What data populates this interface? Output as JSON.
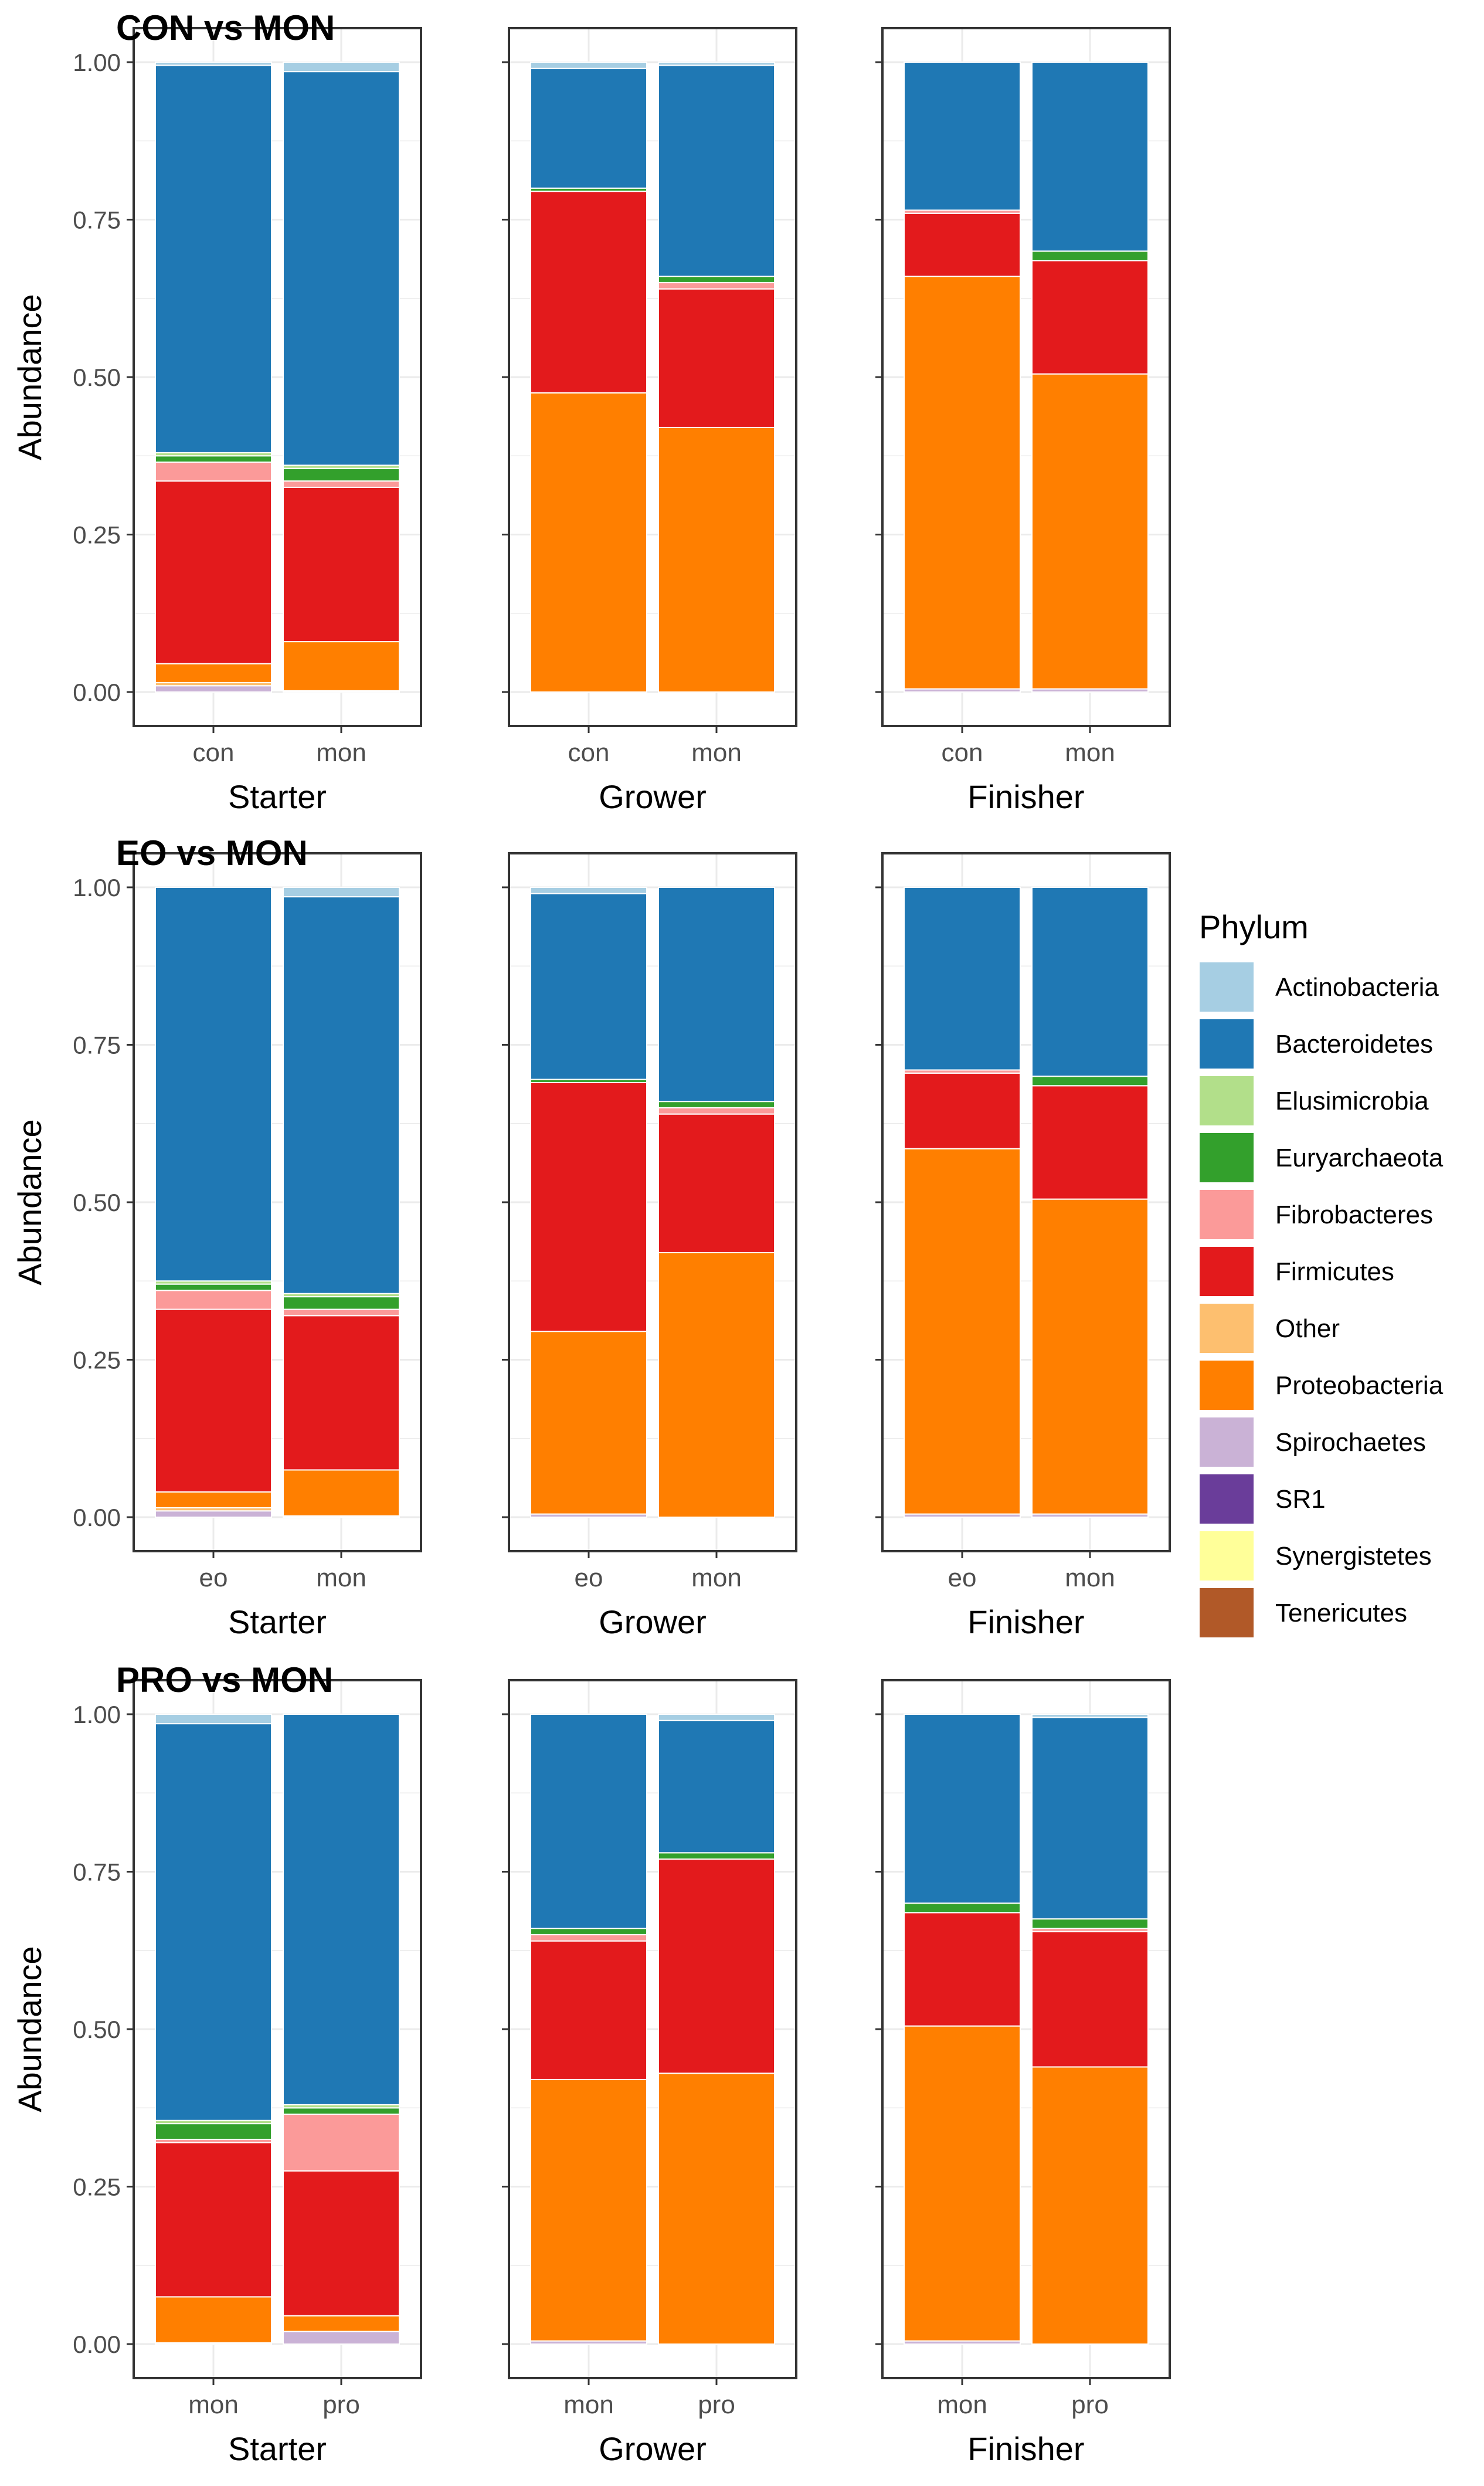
{
  "chart_data": {
    "type": "bar",
    "stacked": true,
    "ylabel": "Abundance",
    "ylim": [
      0,
      1
    ],
    "yticks": [
      "0.00",
      "0.25",
      "0.50",
      "0.75",
      "1.00"
    ],
    "grid": true,
    "legend": {
      "title": "Phylum",
      "position": "right",
      "entries": [
        {
          "name": "Actinobacteria",
          "color": "#A6CEE3"
        },
        {
          "name": "Bacteroidetes",
          "color": "#1F78B4"
        },
        {
          "name": "Elusimicrobia",
          "color": "#B2DF8A"
        },
        {
          "name": "Euryarchaeota",
          "color": "#33A02C"
        },
        {
          "name": "Fibrobacteres",
          "color": "#FB9A99"
        },
        {
          "name": "Firmicutes",
          "color": "#E31A1C"
        },
        {
          "name": "Other",
          "color": "#FDBF6F"
        },
        {
          "name": "Proteobacteria",
          "color": "#FF7F00"
        },
        {
          "name": "Spirochaetes",
          "color": "#CAB2D6"
        },
        {
          "name": "SR1",
          "color": "#6A3D9A"
        },
        {
          "name": "Synergistetes",
          "color": "#FFFF99"
        },
        {
          "name": "Tenericutes",
          "color": "#B15928"
        }
      ]
    },
    "rows": [
      {
        "title": "CON vs MON",
        "panels": [
          {
            "xlabel": "Starter",
            "bars": [
              {
                "category": "con",
                "segments": [
                  {
                    "phylum": "Spirochaetes",
                    "value": 0.01
                  },
                  {
                    "phylum": "Other",
                    "value": 0.005
                  },
                  {
                    "phylum": "Proteobacteria",
                    "value": 0.03
                  },
                  {
                    "phylum": "Firmicutes",
                    "value": 0.29
                  },
                  {
                    "phylum": "Fibrobacteres",
                    "value": 0.03
                  },
                  {
                    "phylum": "Euryarchaeota",
                    "value": 0.01
                  },
                  {
                    "phylum": "Elusimicrobia",
                    "value": 0.005
                  },
                  {
                    "phylum": "Bacteroidetes",
                    "value": 0.615
                  },
                  {
                    "phylum": "Actinobacteria",
                    "value": 0.005
                  }
                ]
              },
              {
                "category": "mon",
                "segments": [
                  {
                    "phylum": "Spirochaetes",
                    "value": 0.002
                  },
                  {
                    "phylum": "Proteobacteria",
                    "value": 0.078
                  },
                  {
                    "phylum": "Firmicutes",
                    "value": 0.245
                  },
                  {
                    "phylum": "Fibrobacteres",
                    "value": 0.01
                  },
                  {
                    "phylum": "Euryarchaeota",
                    "value": 0.02
                  },
                  {
                    "phylum": "Elusimicrobia",
                    "value": 0.005
                  },
                  {
                    "phylum": "Bacteroidetes",
                    "value": 0.625
                  },
                  {
                    "phylum": "Actinobacteria",
                    "value": 0.015
                  }
                ]
              }
            ]
          },
          {
            "xlabel": "Grower",
            "bars": [
              {
                "category": "con",
                "segments": [
                  {
                    "phylum": "Proteobacteria",
                    "value": 0.475
                  },
                  {
                    "phylum": "Firmicutes",
                    "value": 0.32
                  },
                  {
                    "phylum": "Euryarchaeota",
                    "value": 0.005
                  },
                  {
                    "phylum": "Bacteroidetes",
                    "value": 0.19
                  },
                  {
                    "phylum": "Actinobacteria",
                    "value": 0.01
                  }
                ]
              },
              {
                "category": "mon",
                "segments": [
                  {
                    "phylum": "Proteobacteria",
                    "value": 0.42
                  },
                  {
                    "phylum": "Firmicutes",
                    "value": 0.22
                  },
                  {
                    "phylum": "Fibrobacteres",
                    "value": 0.01
                  },
                  {
                    "phylum": "Euryarchaeota",
                    "value": 0.01
                  },
                  {
                    "phylum": "Bacteroidetes",
                    "value": 0.335
                  },
                  {
                    "phylum": "Actinobacteria",
                    "value": 0.005
                  }
                ]
              }
            ]
          },
          {
            "xlabel": "Finisher",
            "bars": [
              {
                "category": "con",
                "segments": [
                  {
                    "phylum": "Spirochaetes",
                    "value": 0.005
                  },
                  {
                    "phylum": "Proteobacteria",
                    "value": 0.655
                  },
                  {
                    "phylum": "Firmicutes",
                    "value": 0.1
                  },
                  {
                    "phylum": "Fibrobacteres",
                    "value": 0.005
                  },
                  {
                    "phylum": "Bacteroidetes",
                    "value": 0.235
                  }
                ]
              },
              {
                "category": "mon",
                "segments": [
                  {
                    "phylum": "Spirochaetes",
                    "value": 0.005
                  },
                  {
                    "phylum": "Proteobacteria",
                    "value": 0.5
                  },
                  {
                    "phylum": "Firmicutes",
                    "value": 0.18
                  },
                  {
                    "phylum": "Euryarchaeota",
                    "value": 0.015
                  },
                  {
                    "phylum": "Bacteroidetes",
                    "value": 0.3
                  }
                ]
              }
            ]
          }
        ]
      },
      {
        "title": "EO vs MON",
        "panels": [
          {
            "xlabel": "Starter",
            "bars": [
              {
                "category": "eo",
                "segments": [
                  {
                    "phylum": "Spirochaetes",
                    "value": 0.01
                  },
                  {
                    "phylum": "Other",
                    "value": 0.005
                  },
                  {
                    "phylum": "Proteobacteria",
                    "value": 0.025
                  },
                  {
                    "phylum": "Firmicutes",
                    "value": 0.29
                  },
                  {
                    "phylum": "Fibrobacteres",
                    "value": 0.03
                  },
                  {
                    "phylum": "Euryarchaeota",
                    "value": 0.01
                  },
                  {
                    "phylum": "Elusimicrobia",
                    "value": 0.005
                  },
                  {
                    "phylum": "Bacteroidetes",
                    "value": 0.625
                  }
                ]
              },
              {
                "category": "mon",
                "segments": [
                  {
                    "phylum": "Spirochaetes",
                    "value": 0.002
                  },
                  {
                    "phylum": "Proteobacteria",
                    "value": 0.073
                  },
                  {
                    "phylum": "Firmicutes",
                    "value": 0.245
                  },
                  {
                    "phylum": "Fibrobacteres",
                    "value": 0.01
                  },
                  {
                    "phylum": "Euryarchaeota",
                    "value": 0.02
                  },
                  {
                    "phylum": "Elusimicrobia",
                    "value": 0.005
                  },
                  {
                    "phylum": "Bacteroidetes",
                    "value": 0.63
                  },
                  {
                    "phylum": "Actinobacteria",
                    "value": 0.015
                  }
                ]
              }
            ]
          },
          {
            "xlabel": "Grower",
            "bars": [
              {
                "category": "eo",
                "segments": [
                  {
                    "phylum": "Spirochaetes",
                    "value": 0.005
                  },
                  {
                    "phylum": "Proteobacteria",
                    "value": 0.29
                  },
                  {
                    "phylum": "Firmicutes",
                    "value": 0.395
                  },
                  {
                    "phylum": "Euryarchaeota",
                    "value": 0.005
                  },
                  {
                    "phylum": "Bacteroidetes",
                    "value": 0.295
                  },
                  {
                    "phylum": "Actinobacteria",
                    "value": 0.01
                  }
                ]
              },
              {
                "category": "mon",
                "segments": [
                  {
                    "phylum": "Proteobacteria",
                    "value": 0.42
                  },
                  {
                    "phylum": "Firmicutes",
                    "value": 0.22
                  },
                  {
                    "phylum": "Fibrobacteres",
                    "value": 0.01
                  },
                  {
                    "phylum": "Euryarchaeota",
                    "value": 0.01
                  },
                  {
                    "phylum": "Bacteroidetes",
                    "value": 0.34
                  }
                ]
              }
            ]
          },
          {
            "xlabel": "Finisher",
            "bars": [
              {
                "category": "eo",
                "segments": [
                  {
                    "phylum": "Spirochaetes",
                    "value": 0.005
                  },
                  {
                    "phylum": "Proteobacteria",
                    "value": 0.58
                  },
                  {
                    "phylum": "Firmicutes",
                    "value": 0.12
                  },
                  {
                    "phylum": "Fibrobacteres",
                    "value": 0.005
                  },
                  {
                    "phylum": "Bacteroidetes",
                    "value": 0.29
                  }
                ]
              },
              {
                "category": "mon",
                "segments": [
                  {
                    "phylum": "Spirochaetes",
                    "value": 0.005
                  },
                  {
                    "phylum": "Proteobacteria",
                    "value": 0.5
                  },
                  {
                    "phylum": "Firmicutes",
                    "value": 0.18
                  },
                  {
                    "phylum": "Euryarchaeota",
                    "value": 0.015
                  },
                  {
                    "phylum": "Bacteroidetes",
                    "value": 0.3
                  }
                ]
              }
            ]
          }
        ]
      },
      {
        "title": "PRO vs MON",
        "panels": [
          {
            "xlabel": "Starter",
            "bars": [
              {
                "category": "mon",
                "segments": [
                  {
                    "phylum": "Spirochaetes",
                    "value": 0.002
                  },
                  {
                    "phylum": "Proteobacteria",
                    "value": 0.073
                  },
                  {
                    "phylum": "Firmicutes",
                    "value": 0.245
                  },
                  {
                    "phylum": "Fibrobacteres",
                    "value": 0.005
                  },
                  {
                    "phylum": "Euryarchaeota",
                    "value": 0.025
                  },
                  {
                    "phylum": "Elusimicrobia",
                    "value": 0.005
                  },
                  {
                    "phylum": "Bacteroidetes",
                    "value": 0.63
                  },
                  {
                    "phylum": "Actinobacteria",
                    "value": 0.015
                  }
                ]
              },
              {
                "category": "pro",
                "segments": [
                  {
                    "phylum": "Spirochaetes",
                    "value": 0.02
                  },
                  {
                    "phylum": "Proteobacteria",
                    "value": 0.025
                  },
                  {
                    "phylum": "Firmicutes",
                    "value": 0.23
                  },
                  {
                    "phylum": "Fibrobacteres",
                    "value": 0.09
                  },
                  {
                    "phylum": "Euryarchaeota",
                    "value": 0.01
                  },
                  {
                    "phylum": "Elusimicrobia",
                    "value": 0.005
                  },
                  {
                    "phylum": "Bacteroidetes",
                    "value": 0.62
                  }
                ]
              }
            ]
          },
          {
            "xlabel": "Grower",
            "bars": [
              {
                "category": "mon",
                "segments": [
                  {
                    "phylum": "Spirochaetes",
                    "value": 0.005
                  },
                  {
                    "phylum": "Proteobacteria",
                    "value": 0.415
                  },
                  {
                    "phylum": "Firmicutes",
                    "value": 0.22
                  },
                  {
                    "phylum": "Fibrobacteres",
                    "value": 0.01
                  },
                  {
                    "phylum": "Euryarchaeota",
                    "value": 0.01
                  },
                  {
                    "phylum": "Bacteroidetes",
                    "value": 0.34
                  }
                ]
              },
              {
                "category": "pro",
                "segments": [
                  {
                    "phylum": "Proteobacteria",
                    "value": 0.43
                  },
                  {
                    "phylum": "Firmicutes",
                    "value": 0.34
                  },
                  {
                    "phylum": "Euryarchaeota",
                    "value": 0.01
                  },
                  {
                    "phylum": "Bacteroidetes",
                    "value": 0.21
                  },
                  {
                    "phylum": "Actinobacteria",
                    "value": 0.01
                  }
                ]
              }
            ]
          },
          {
            "xlabel": "Finisher",
            "bars": [
              {
                "category": "mon",
                "segments": [
                  {
                    "phylum": "Spirochaetes",
                    "value": 0.005
                  },
                  {
                    "phylum": "Proteobacteria",
                    "value": 0.5
                  },
                  {
                    "phylum": "Firmicutes",
                    "value": 0.18
                  },
                  {
                    "phylum": "Euryarchaeota",
                    "value": 0.015
                  },
                  {
                    "phylum": "Bacteroidetes",
                    "value": 0.3
                  }
                ]
              },
              {
                "category": "pro",
                "segments": [
                  {
                    "phylum": "Proteobacteria",
                    "value": 0.44
                  },
                  {
                    "phylum": "Firmicutes",
                    "value": 0.215
                  },
                  {
                    "phylum": "Fibrobacteres",
                    "value": 0.005
                  },
                  {
                    "phylum": "Euryarchaeota",
                    "value": 0.015
                  },
                  {
                    "phylum": "Bacteroidetes",
                    "value": 0.32
                  },
                  {
                    "phylum": "Actinobacteria",
                    "value": 0.005
                  }
                ]
              }
            ]
          }
        ]
      }
    ]
  }
}
